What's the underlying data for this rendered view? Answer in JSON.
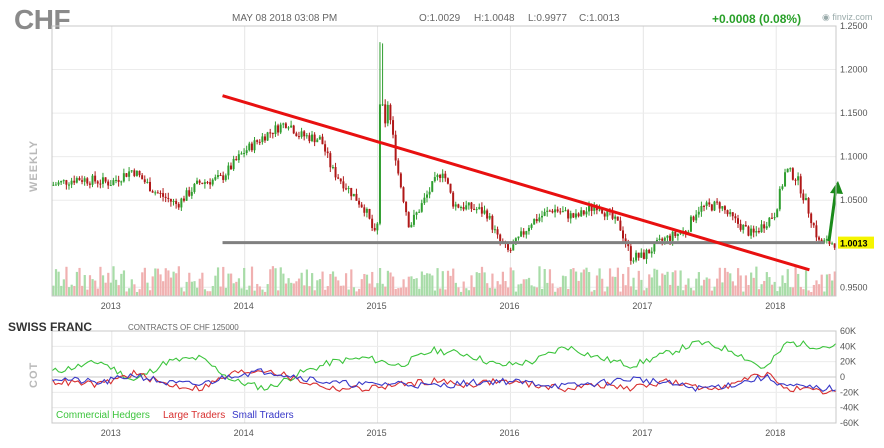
{
  "header": {
    "ticker": "CHF",
    "datetime": "MAY 08 2018 03:08 PM",
    "open": "O:1.0029",
    "high": "H:1.0048",
    "low": "L:0.9977",
    "close": "C:1.0013",
    "change": "+0.0008 (0.08%)",
    "source": "finviz.com",
    "interval_label": "WEEKLY"
  },
  "cot": {
    "title": "SWISS FRANC",
    "subtitle": "CONTRACTS OF CHF 125000",
    "side_label": "COT",
    "legend": [
      {
        "label": "Commercial Hedgers",
        "color": "#3cc43c"
      },
      {
        "label": "Large Traders",
        "color": "#d83030"
      },
      {
        "label": "Small Traders",
        "color": "#3838c8"
      }
    ]
  },
  "colors": {
    "up_candle": "#2f9e2f",
    "down_candle": "#b01818",
    "trendline": "#e81010",
    "support_line": "#808080",
    "arrow": "#1a8a1a",
    "price_badge": "#f5f500"
  },
  "chart_data": [
    {
      "type": "candlestick",
      "title": "CHF",
      "interval": "weekly",
      "x_tick_labels": [
        "2013",
        "2014",
        "2015",
        "2016",
        "2017",
        "2018"
      ],
      "y_tick_labels": [
        "1.2500",
        "1.2000",
        "1.1500",
        "1.1000",
        "1.0500",
        "1.0013",
        "0.9500"
      ],
      "ylim": [
        0.94,
        1.25
      ],
      "last_price": "1.0013",
      "close_series": [
        [
          "2012-07",
          1.065
        ],
        [
          "2012-10",
          1.075
        ],
        [
          "2013-01",
          1.07
        ],
        [
          "2013-03",
          1.085
        ],
        [
          "2013-05",
          1.06
        ],
        [
          "2013-07",
          1.045
        ],
        [
          "2013-09",
          1.07
        ],
        [
          "2013-11",
          1.075
        ],
        [
          "2014-01",
          1.105
        ],
        [
          "2014-03",
          1.125
        ],
        [
          "2014-05",
          1.14
        ],
        [
          "2014-06",
          1.125
        ],
        [
          "2014-08",
          1.12
        ],
        [
          "2014-09",
          1.085
        ],
        [
          "2014-11",
          1.055
        ],
        [
          "2014-12",
          1.04
        ],
        [
          "2015-01",
          1.005
        ],
        [
          "2015-02",
          1.165
        ],
        [
          "2015-03",
          1.08
        ],
        [
          "2015-04",
          1.02
        ],
        [
          "2015-06",
          1.065
        ],
        [
          "2015-07",
          1.085
        ],
        [
          "2015-08",
          1.045
        ],
        [
          "2015-10",
          1.04
        ],
        [
          "2015-11",
          1.035
        ],
        [
          "2015-12",
          1.005
        ],
        [
          "2016-01",
          0.99
        ],
        [
          "2016-03",
          1.025
        ],
        [
          "2016-05",
          1.04
        ],
        [
          "2016-07",
          1.03
        ],
        [
          "2016-09",
          1.045
        ],
        [
          "2016-11",
          1.02
        ],
        [
          "2016-12",
          0.985
        ],
        [
          "2017-01",
          0.985
        ],
        [
          "2017-03",
          1.005
        ],
        [
          "2017-05",
          1.015
        ],
        [
          "2017-06",
          1.04
        ],
        [
          "2017-08",
          1.045
        ],
        [
          "2017-09",
          1.03
        ],
        [
          "2017-10",
          1.02
        ],
        [
          "2017-11",
          1.01
        ],
        [
          "2018-01",
          1.035
        ],
        [
          "2018-02",
          1.085
        ],
        [
          "2018-03",
          1.075
        ],
        [
          "2018-04",
          1.04
        ],
        [
          "2018-05",
          1.0013
        ]
      ],
      "trendline": {
        "from": [
          "2013-11",
          1.17
        ],
        "to": [
          "2018-04",
          0.97
        ]
      },
      "support_line": {
        "value": 1.0013,
        "from": "2013-11",
        "to": "2018-05"
      }
    },
    {
      "type": "line",
      "title": "SWISS FRANC",
      "x_tick_labels": [
        "2013",
        "2014",
        "2015",
        "2016",
        "2017",
        "2018"
      ],
      "y_tick_labels": [
        "60K",
        "40K",
        "20K",
        "0",
        "-20K",
        "-40K",
        "-60K"
      ],
      "ylim": [
        -60000,
        60000
      ],
      "series": [
        {
          "name": "Commercial Hedgers",
          "values": [
            [
              "2012-07",
              5000
            ],
            [
              "2012-12",
              20000
            ],
            [
              "2013-03",
              -5000
            ],
            [
              "2013-06",
              20000
            ],
            [
              "2013-09",
              25000
            ],
            [
              "2013-12",
              -5000
            ],
            [
              "2014-03",
              -15000
            ],
            [
              "2014-06",
              5000
            ],
            [
              "2014-09",
              20000
            ],
            [
              "2014-12",
              25000
            ],
            [
              "2015-03",
              15000
            ],
            [
              "2015-06",
              35000
            ],
            [
              "2015-09",
              30000
            ],
            [
              "2015-12",
              15000
            ],
            [
              "2016-03",
              20000
            ],
            [
              "2016-06",
              40000
            ],
            [
              "2016-09",
              25000
            ],
            [
              "2016-12",
              15000
            ],
            [
              "2017-03",
              30000
            ],
            [
              "2017-06",
              45000
            ],
            [
              "2017-09",
              35000
            ],
            [
              "2017-12",
              10000
            ],
            [
              "2018-02",
              45000
            ],
            [
              "2018-05",
              40000
            ]
          ]
        },
        {
          "name": "Large Traders",
          "values": [
            [
              "2012-07",
              -5000
            ],
            [
              "2012-12",
              -10000
            ],
            [
              "2013-03",
              5000
            ],
            [
              "2013-06",
              -10000
            ],
            [
              "2013-09",
              -15000
            ],
            [
              "2013-12",
              5000
            ],
            [
              "2014-03",
              10000
            ],
            [
              "2014-06",
              -5000
            ],
            [
              "2014-09",
              -15000
            ],
            [
              "2014-12",
              -15000
            ],
            [
              "2015-03",
              -10000
            ],
            [
              "2015-06",
              -5000
            ],
            [
              "2015-09",
              -10000
            ],
            [
              "2015-12",
              -5000
            ],
            [
              "2016-03",
              -10000
            ],
            [
              "2016-06",
              -15000
            ],
            [
              "2016-09",
              -10000
            ],
            [
              "2016-12",
              -15000
            ],
            [
              "2017-03",
              -5000
            ],
            [
              "2017-06",
              -15000
            ],
            [
              "2017-09",
              -10000
            ],
            [
              "2017-12",
              5000
            ],
            [
              "2018-02",
              -15000
            ],
            [
              "2018-05",
              -20000
            ]
          ]
        },
        {
          "name": "Small Traders",
          "values": [
            [
              "2012-07",
              0
            ],
            [
              "2012-12",
              -8000
            ],
            [
              "2013-03",
              3000
            ],
            [
              "2013-06",
              -8000
            ],
            [
              "2013-09",
              -10000
            ],
            [
              "2013-12",
              3000
            ],
            [
              "2014-03",
              8000
            ],
            [
              "2014-06",
              0
            ],
            [
              "2014-09",
              -8000
            ],
            [
              "2014-12",
              -10000
            ],
            [
              "2015-03",
              -8000
            ],
            [
              "2015-06",
              -12000
            ],
            [
              "2015-09",
              -8000
            ],
            [
              "2015-12",
              -5000
            ],
            [
              "2016-03",
              -8000
            ],
            [
              "2016-06",
              -12000
            ],
            [
              "2016-09",
              -8000
            ],
            [
              "2016-12",
              -2000
            ],
            [
              "2017-03",
              -8000
            ],
            [
              "2017-06",
              -15000
            ],
            [
              "2017-09",
              -10000
            ],
            [
              "2017-12",
              0
            ],
            [
              "2018-02",
              -12000
            ],
            [
              "2018-05",
              -15000
            ]
          ]
        }
      ]
    }
  ]
}
